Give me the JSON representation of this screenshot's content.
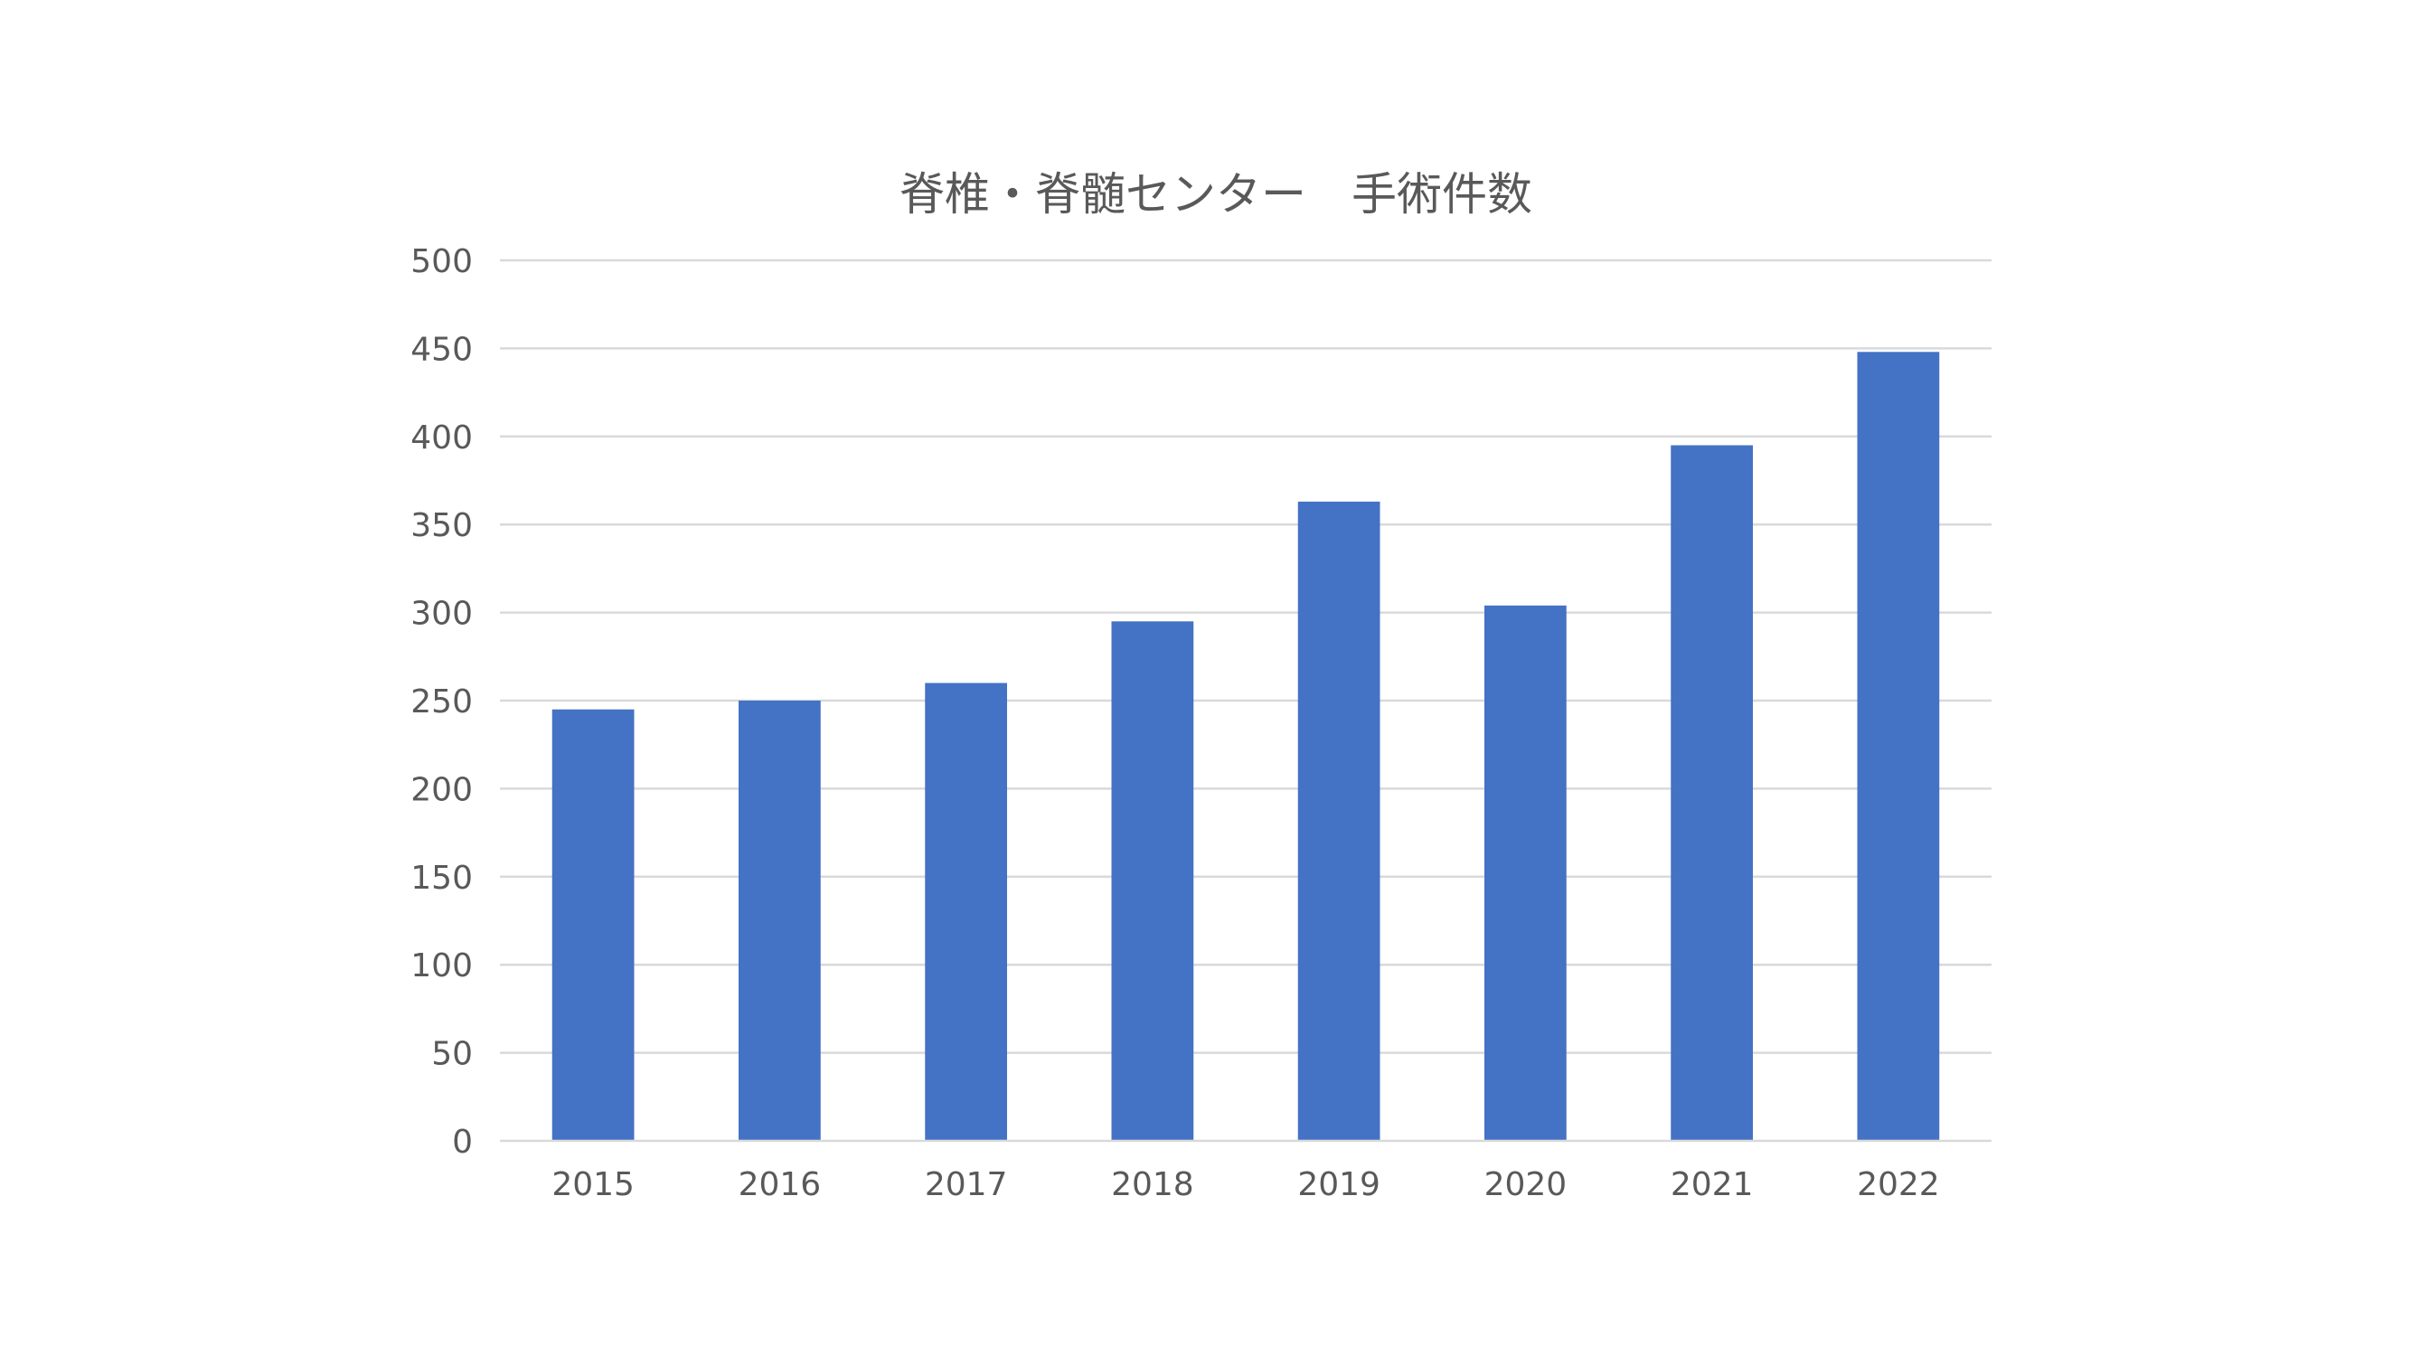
{
  "chart_data": {
    "type": "bar",
    "title": "脊椎・脊髄センター　手術件数",
    "xlabel": "",
    "ylabel": "",
    "categories": [
      "2015",
      "2016",
      "2017",
      "2018",
      "2019",
      "2020",
      "2021",
      "2022"
    ],
    "values": [
      245,
      250,
      260,
      295,
      363,
      304,
      395,
      448
    ],
    "ylim": [
      0,
      500
    ],
    "yticks": [
      0,
      50,
      100,
      150,
      200,
      250,
      300,
      350,
      400,
      450,
      500
    ],
    "grid": "horizontal",
    "legend": "none",
    "bar_color": "#4472c4"
  }
}
